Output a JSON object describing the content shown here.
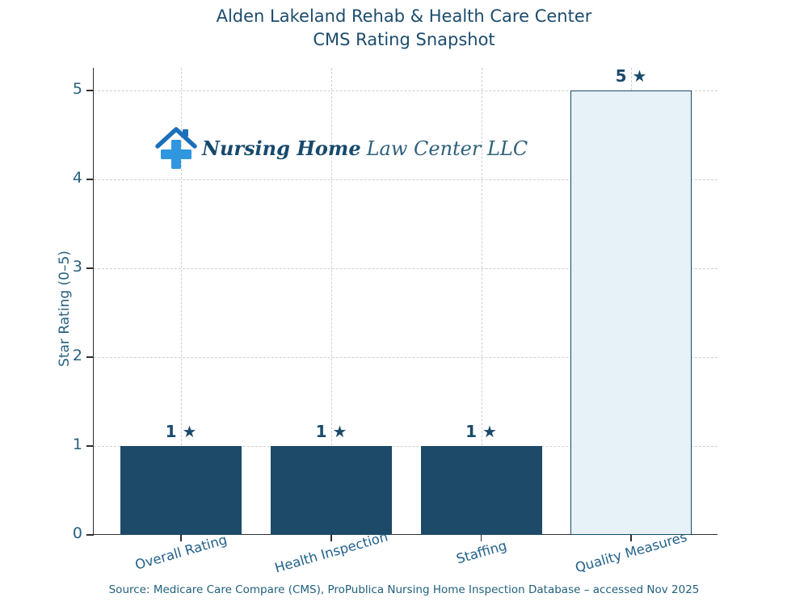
{
  "title": {
    "line1": "Alden Lakeland Rehab & Health Care Center",
    "line2": "CMS Rating Snapshot"
  },
  "logo": {
    "icon": "house-medical-cross-icon",
    "name_primary": "Nursing Home",
    "name_secondary": "Law Center LLC"
  },
  "chart_data": {
    "type": "bar",
    "title": "Alden Lakeland Rehab & Health Care Center — CMS Rating Snapshot",
    "categories": [
      "Overall Rating",
      "Health Inspection",
      "Staffing",
      "Quality Measures"
    ],
    "values": [
      1,
      1,
      1,
      5
    ],
    "value_labels": [
      "1 ★",
      "1 ★",
      "1 ★",
      "5 ★"
    ],
    "xlabel": "",
    "ylabel": "Star Rating (0–5)",
    "ylim": [
      0,
      5.25
    ],
    "yticks": [
      0,
      1,
      2,
      3,
      4,
      5
    ],
    "grid": "dashed-both-axes",
    "legend": "none",
    "bar_fill_colors": [
      "#1d4a68",
      "#1d4a68",
      "#1d4a68",
      "#e7f1f8"
    ],
    "bar_edge_color": "#1b4a68"
  },
  "source": {
    "text": "Source: Medicare Care Compare (CMS), ProPublica Nursing Home Inspection Database – accessed Nov 2025"
  },
  "colors": {
    "title": "#1d4c6d",
    "value_label": "#1b4a6b",
    "axis_text": "#27607f",
    "x_label_text": "#21618a",
    "gridline": "#cfcfcf",
    "spine": "#2e2e2e",
    "source_text": "#21607c",
    "logo_dark": "#174a6d",
    "logo_light": "#2f607c",
    "logo_roof": "#1c70ba",
    "logo_cross": "#2f96df"
  }
}
